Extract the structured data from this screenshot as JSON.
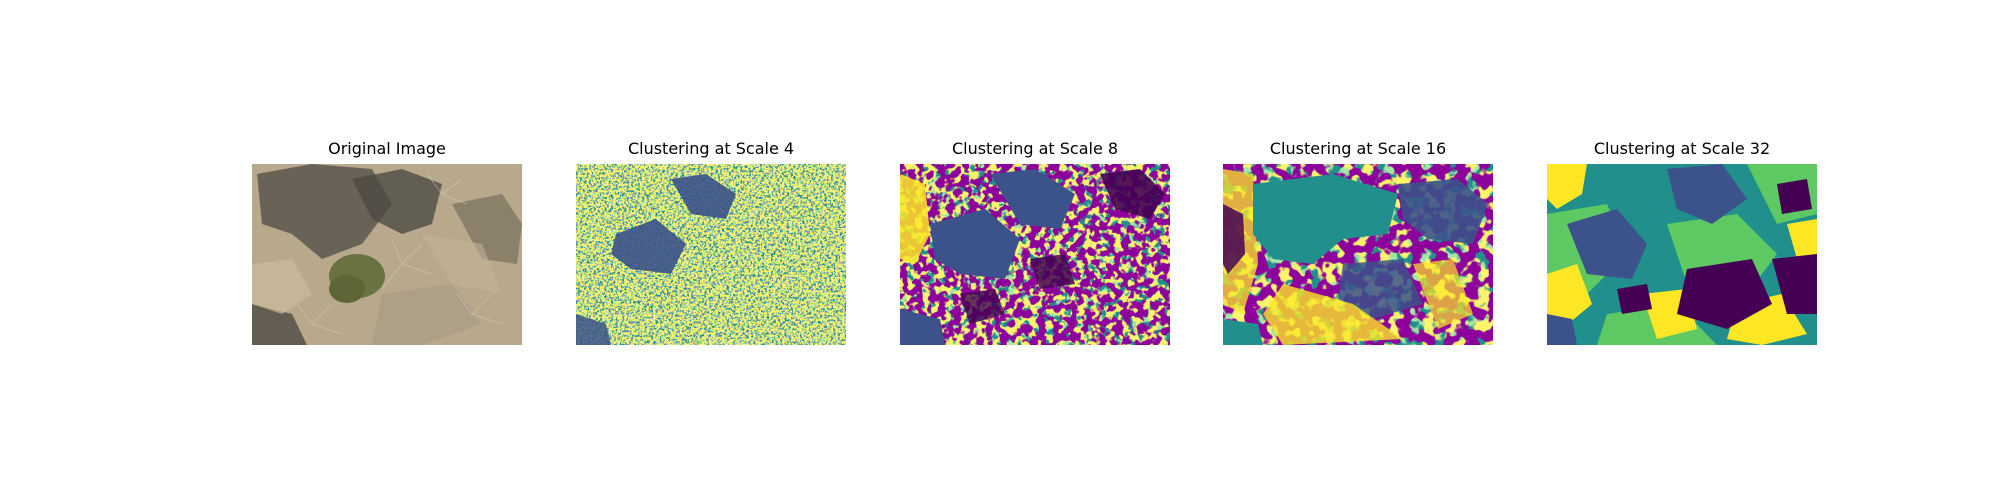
{
  "figure": {
    "panels": [
      {
        "title": "Original Image",
        "kind": "photo",
        "description_colors": [
          "#b7a58a",
          "#8c7c64",
          "#4d4a42",
          "#6d7344",
          "#cfc2a8"
        ]
      },
      {
        "title": "Clustering at Scale 4",
        "kind": "cluster",
        "palette": [
          "#21908d",
          "#3b528b",
          "#5ec962",
          "#fde725",
          "#440154"
        ]
      },
      {
        "title": "Clustering at Scale 8",
        "kind": "cluster",
        "palette": [
          "#21908d",
          "#3b528b",
          "#5ec962",
          "#fde725",
          "#440154"
        ]
      },
      {
        "title": "Clustering at Scale 16",
        "kind": "cluster",
        "palette": [
          "#21908d",
          "#3b528b",
          "#5ec962",
          "#fde725",
          "#440154"
        ]
      },
      {
        "title": "Clustering at Scale 32",
        "kind": "cluster",
        "palette": [
          "#21908d",
          "#3b528b",
          "#5ec962",
          "#fde725",
          "#440154"
        ]
      }
    ]
  }
}
